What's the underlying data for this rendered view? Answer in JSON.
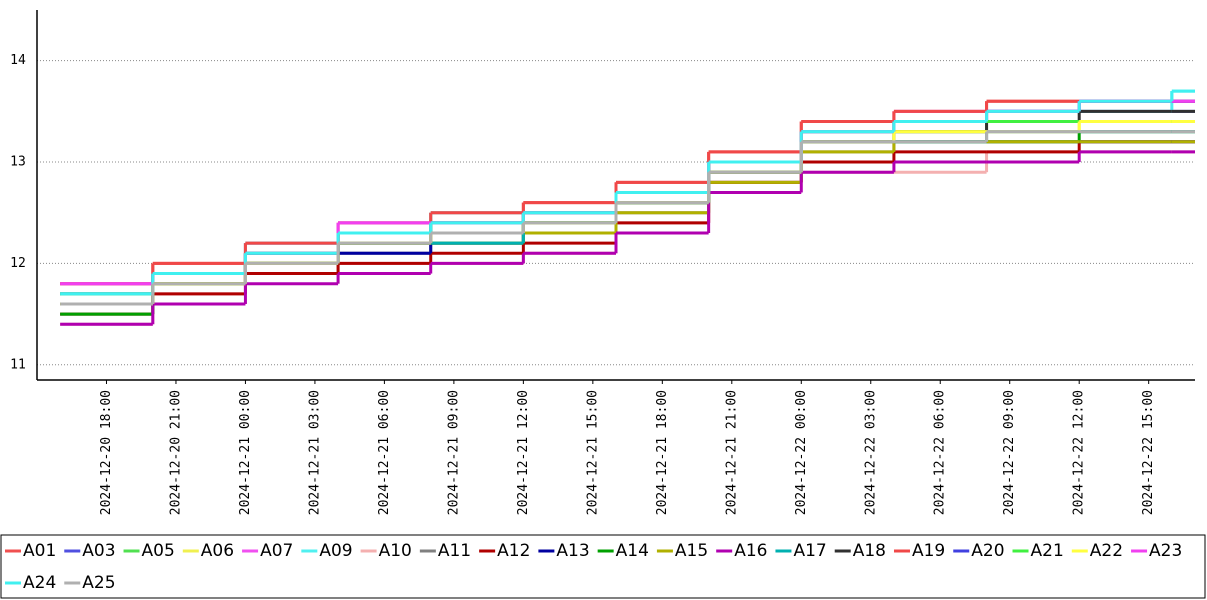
{
  "chart_data": {
    "type": "step-line",
    "x": [
      "2024-12-20 16:00",
      "2024-12-20 20:00",
      "2024-12-21 00:00",
      "2024-12-21 04:00",
      "2024-12-21 08:00",
      "2024-12-21 12:00",
      "2024-12-21 16:00",
      "2024-12-21 20:00",
      "2024-12-22 00:00",
      "2024-12-22 04:00",
      "2024-12-22 08:00",
      "2024-12-22 12:00",
      "2024-12-22 16:00",
      "2024-12-22 17:00"
    ],
    "xlim": [
      "2024-12-20 15:00",
      "2024-12-22 17:00"
    ],
    "xticks": [
      "2024-12-20 18:00",
      "2024-12-20 21:00",
      "2024-12-21 00:00",
      "2024-12-21 03:00",
      "2024-12-21 06:00",
      "2024-12-21 09:00",
      "2024-12-21 12:00",
      "2024-12-21 15:00",
      "2024-12-21 18:00",
      "2024-12-21 21:00",
      "2024-12-22 00:00",
      "2024-12-22 03:00",
      "2024-12-22 06:00",
      "2024-12-22 09:00",
      "2024-12-22 12:00",
      "2024-12-22 15:00"
    ],
    "ylim": [
      10.85,
      14.5
    ],
    "yticks": [
      11,
      12,
      13,
      14
    ],
    "grid": true,
    "series": [
      {
        "name": "A01",
        "color": "#f05050",
        "values": [
          11.8,
          12.0,
          12.2,
          12.4,
          12.5,
          12.6,
          12.8,
          13.1,
          13.4,
          13.5,
          13.6,
          13.6,
          13.6,
          13.6
        ]
      },
      {
        "name": "A03",
        "color": "#5050e0",
        "values": [
          11.7,
          11.9,
          12.2,
          12.3,
          12.4,
          12.5,
          12.7,
          13.0,
          13.3,
          13.4,
          13.5,
          13.5,
          13.5,
          13.5
        ]
      },
      {
        "name": "A05",
        "color": "#50e050",
        "values": [
          11.7,
          11.8,
          12.1,
          12.3,
          12.3,
          12.5,
          12.6,
          12.9,
          13.2,
          13.3,
          13.4,
          13.4,
          13.4,
          13.4
        ]
      },
      {
        "name": "A06",
        "color": "#f0f050",
        "values": [
          11.6,
          11.8,
          12.0,
          12.2,
          12.3,
          12.4,
          12.6,
          12.9,
          13.2,
          13.3,
          13.3,
          13.4,
          13.4,
          13.4
        ]
      },
      {
        "name": "A07",
        "color": "#f050f0",
        "values": [
          11.8,
          11.9,
          12.1,
          12.4,
          12.4,
          12.5,
          12.7,
          13.0,
          13.3,
          13.5,
          13.5,
          13.6,
          13.6,
          13.6
        ]
      },
      {
        "name": "A09",
        "color": "#50f0f0",
        "values": [
          11.7,
          11.9,
          12.2,
          12.3,
          12.5,
          12.5,
          12.7,
          13.0,
          13.3,
          13.4,
          13.5,
          13.5,
          13.7,
          13.7
        ]
      },
      {
        "name": "A10",
        "color": "#f4b0b0",
        "values": [
          11.4,
          11.7,
          11.9,
          12.0,
          12.0,
          12.1,
          12.4,
          12.8,
          12.9,
          12.9,
          13.1,
          13.1,
          13.1,
          13.1
        ]
      },
      {
        "name": "A11",
        "color": "#808080",
        "values": [
          11.5,
          11.8,
          12.0,
          12.1,
          12.2,
          12.3,
          12.5,
          12.8,
          13.1,
          13.2,
          13.3,
          13.3,
          13.3,
          13.3
        ]
      },
      {
        "name": "A12",
        "color": "#b00000",
        "values": [
          11.5,
          11.7,
          11.9,
          12.0,
          12.1,
          12.2,
          12.4,
          12.8,
          13.0,
          13.1,
          13.1,
          13.2,
          13.2,
          13.2
        ]
      },
      {
        "name": "A13",
        "color": "#0000a0",
        "values": [
          11.6,
          11.8,
          12.0,
          12.1,
          12.2,
          12.3,
          12.6,
          12.9,
          13.2,
          13.2,
          13.2,
          13.2,
          13.2,
          13.2
        ]
      },
      {
        "name": "A14",
        "color": "#00a000",
        "values": [
          11.5,
          11.8,
          12.0,
          12.2,
          12.2,
          12.4,
          12.6,
          12.9,
          13.2,
          13.2,
          13.2,
          13.3,
          13.3,
          13.3
        ]
      },
      {
        "name": "A15",
        "color": "#b0b000",
        "values": [
          11.6,
          11.8,
          12.0,
          12.2,
          12.2,
          12.3,
          12.5,
          12.8,
          13.1,
          13.2,
          13.2,
          13.2,
          13.2,
          13.2
        ]
      },
      {
        "name": "A16",
        "color": "#b000b0",
        "values": [
          11.4,
          11.6,
          11.8,
          11.9,
          12.0,
          12.1,
          12.3,
          12.7,
          12.9,
          13.0,
          13.0,
          13.1,
          13.1,
          13.1
        ]
      },
      {
        "name": "A17",
        "color": "#00b0b0",
        "values": [
          11.6,
          11.9,
          12.1,
          12.2,
          12.2,
          12.4,
          12.6,
          12.9,
          13.2,
          13.2,
          13.3,
          13.3,
          13.3,
          13.3
        ]
      },
      {
        "name": "A18",
        "color": "#303030",
        "values": [
          11.6,
          11.9,
          12.1,
          12.2,
          12.3,
          12.4,
          12.6,
          12.9,
          13.2,
          13.3,
          13.4,
          13.5,
          13.5,
          13.5
        ]
      },
      {
        "name": "A19",
        "color": "#f04848",
        "values": [
          11.8,
          12.0,
          12.2,
          12.4,
          12.5,
          12.6,
          12.8,
          13.1,
          13.4,
          13.5,
          13.6,
          13.6,
          13.6,
          13.6
        ]
      },
      {
        "name": "A20",
        "color": "#4040e0",
        "values": [
          11.7,
          11.9,
          12.1,
          12.3,
          12.4,
          12.5,
          12.7,
          13.0,
          13.3,
          13.4,
          13.5,
          13.6,
          13.6,
          13.6
        ]
      },
      {
        "name": "A21",
        "color": "#40f040",
        "values": [
          11.7,
          11.9,
          12.1,
          12.3,
          12.4,
          12.5,
          12.7,
          13.0,
          13.3,
          13.4,
          13.4,
          13.4,
          13.4,
          13.4
        ]
      },
      {
        "name": "A22",
        "color": "#ffff40",
        "values": [
          11.6,
          11.8,
          12.0,
          12.2,
          12.3,
          12.4,
          12.6,
          12.9,
          13.2,
          13.3,
          13.3,
          13.4,
          13.4,
          13.4
        ]
      },
      {
        "name": "A23",
        "color": "#f040f0",
        "values": [
          11.8,
          11.9,
          12.1,
          12.4,
          12.4,
          12.5,
          12.7,
          13.0,
          13.3,
          13.4,
          13.5,
          13.6,
          13.6,
          13.6
        ]
      },
      {
        "name": "A24",
        "color": "#40f0f0",
        "values": [
          11.7,
          11.9,
          12.1,
          12.3,
          12.4,
          12.5,
          12.7,
          13.0,
          13.3,
          13.4,
          13.5,
          13.6,
          13.7,
          13.7
        ]
      },
      {
        "name": "A25",
        "color": "#b0b0b0",
        "values": [
          11.6,
          11.8,
          12.0,
          12.2,
          12.3,
          12.4,
          12.6,
          12.9,
          13.2,
          13.2,
          13.3,
          13.3,
          13.3,
          13.3
        ]
      }
    ]
  }
}
